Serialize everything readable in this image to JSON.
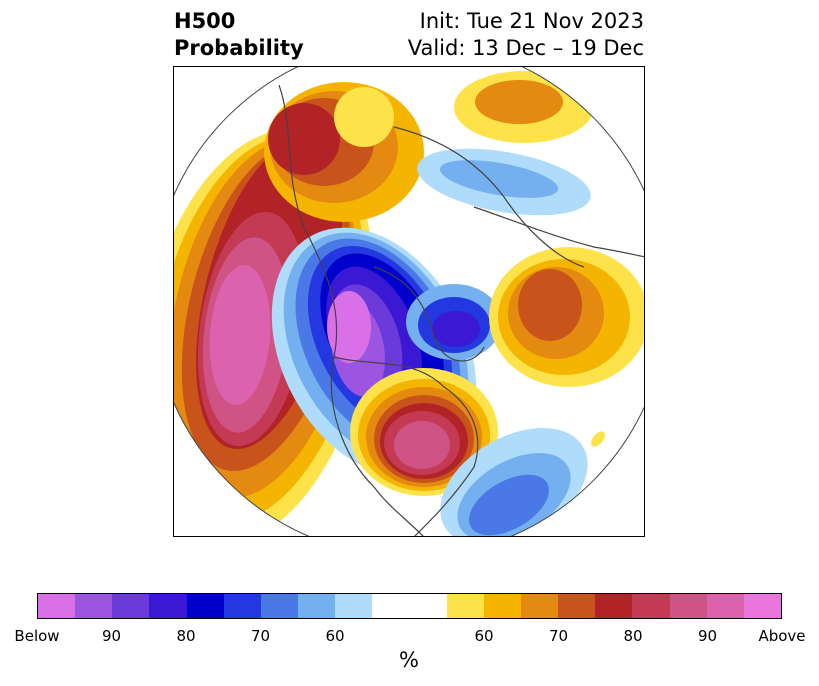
{
  "title": {
    "left_line1": "H500",
    "left_line2": "Probability",
    "init": "Init: Tue 21 Nov 2023",
    "valid": "Valid: 13 Dec – 19 Dec"
  },
  "colorbar": {
    "below_colors": [
      "#da70e8",
      "#9b55e0",
      "#6b3adb",
      "#3a18d4",
      "#0000cd",
      "#2338e0",
      "#4a78e6",
      "#74b0f0",
      "#aedcfa"
    ],
    "neutral_color": "#ffffff",
    "above_colors": [
      "#fde349",
      "#f4b400",
      "#e48a10",
      "#c8541c",
      "#b12326",
      "#c43a55",
      "#cf5485",
      "#dd62ad",
      "#e975dd"
    ],
    "tick_labels": [
      "Below",
      "90",
      "80",
      "70",
      "60",
      "60",
      "70",
      "80",
      "90",
      "Above"
    ],
    "unit_label": "%"
  }
}
